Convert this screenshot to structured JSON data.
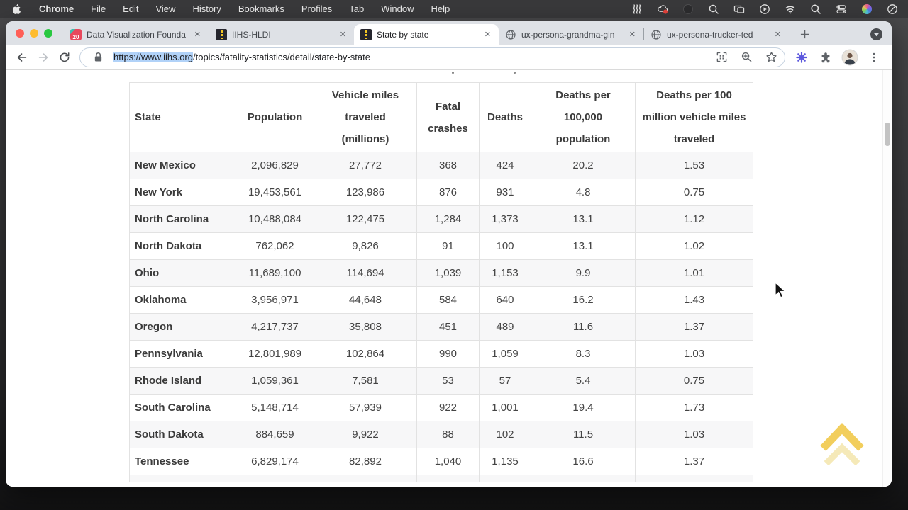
{
  "menu_bar": {
    "items": [
      "Chrome",
      "File",
      "Edit",
      "View",
      "History",
      "Bookmarks",
      "Profiles",
      "Tab",
      "Window",
      "Help"
    ],
    "status_icons": [
      "waves-icon",
      "creative-cloud-icon",
      "dimmed-app-icon",
      "loupe-icon",
      "screen-mirroring-icon",
      "play-circle-icon",
      "wifi-icon",
      "spotlight-search-icon",
      "control-center-icon",
      "pinwheel-icon",
      "do-not-disturb-icon"
    ]
  },
  "window": {
    "tab_bar": {
      "tabs": [
        {
          "label": "Data Visualization Founda",
          "favicon": "calendar-favicon",
          "favicon_badge": "20",
          "active": false
        },
        {
          "label": "IIHS-HLDI",
          "favicon": "road-favicon",
          "active": false
        },
        {
          "label": "State by state",
          "favicon": "road-favicon",
          "active": true
        },
        {
          "label": "ux-persona-grandma-gin",
          "favicon": "globe-favicon",
          "active": false
        },
        {
          "label": "ux-persona-trucker-ted",
          "favicon": "globe-favicon",
          "active": false
        }
      ],
      "close_glyph": "✕"
    },
    "toolbar": {
      "url_selected": "https://www.iihs.org",
      "url_rest": "/topics/fatality-statistics/detail/state-by-state",
      "omnibox_icons": [
        "scan-icon",
        "zoom-level-icon",
        "bookmark-star-icon"
      ],
      "right_icons": [
        "extension-asterisk-icon",
        "extensions-puzzle-icon",
        "profile-avatar",
        "kebab-menu-icon"
      ]
    }
  },
  "page": {
    "table": {
      "headers": [
        "State",
        "Population",
        "Vehicle miles traveled (millions)",
        "Fatal crashes",
        "Deaths",
        "Deaths per 100,000 population",
        "Deaths per 100 million vehicle miles traveled"
      ],
      "rows": [
        [
          "New Mexico",
          "2,096,829",
          "27,772",
          "368",
          "424",
          "20.2",
          "1.53"
        ],
        [
          "New York",
          "19,453,561",
          "123,986",
          "876",
          "931",
          "4.8",
          "0.75"
        ],
        [
          "North Carolina",
          "10,488,084",
          "122,475",
          "1,284",
          "1,373",
          "13.1",
          "1.12"
        ],
        [
          "North Dakota",
          "762,062",
          "9,826",
          "91",
          "100",
          "13.1",
          "1.02"
        ],
        [
          "Ohio",
          "11,689,100",
          "114,694",
          "1,039",
          "1,153",
          "9.9",
          "1.01"
        ],
        [
          "Oklahoma",
          "3,956,971",
          "44,648",
          "584",
          "640",
          "16.2",
          "1.43"
        ],
        [
          "Oregon",
          "4,217,737",
          "35,808",
          "451",
          "489",
          "11.6",
          "1.37"
        ],
        [
          "Pennsylvania",
          "12,801,989",
          "102,864",
          "990",
          "1,059",
          "8.3",
          "1.03"
        ],
        [
          "Rhode Island",
          "1,059,361",
          "7,581",
          "53",
          "57",
          "5.4",
          "0.75"
        ],
        [
          "South Carolina",
          "5,148,714",
          "57,939",
          "922",
          "1,001",
          "19.4",
          "1.73"
        ],
        [
          "South Dakota",
          "884,659",
          "9,922",
          "88",
          "102",
          "11.5",
          "1.03"
        ],
        [
          "Tennessee",
          "6,829,174",
          "82,892",
          "1,040",
          "1,135",
          "16.6",
          "1.37"
        ]
      ]
    }
  },
  "colors": {
    "accent_gold": "#f0c53f",
    "accent_gold_faint": "#f2e3a6",
    "selection_blue": "#b1d2f8",
    "traffic_red": "#ff5f57",
    "traffic_yellow": "#febc2e",
    "traffic_green": "#28c840",
    "menubar_bg": "#39393b",
    "tabstrip_bg": "#dee1e6"
  }
}
